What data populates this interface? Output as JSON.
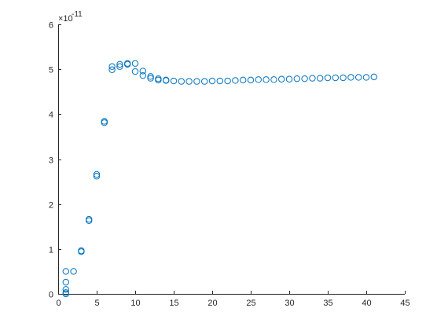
{
  "chart_data": {
    "type": "scatter",
    "title": "",
    "xlabel": "",
    "ylabel": "",
    "exponent_label": "×10",
    "exponent_value": "-11",
    "xlim": [
      0,
      45
    ],
    "ylim": [
      0,
      6
    ],
    "xticks": [
      0,
      5,
      10,
      15,
      20,
      25,
      30,
      35,
      40,
      45
    ],
    "yticks": [
      0,
      1,
      2,
      3,
      4,
      5,
      6
    ],
    "grid": false,
    "legend": "none",
    "marker_color": "#0072BD",
    "axis_color": "#262626",
    "series": [
      {
        "x": [
          1,
          1,
          1,
          1,
          1,
          2,
          3,
          3,
          4,
          4,
          5,
          5,
          6,
          6,
          7,
          7,
          8,
          8,
          9,
          9,
          10,
          10,
          11,
          11,
          12,
          12,
          13,
          13,
          14,
          14,
          15,
          16,
          17,
          18,
          19,
          20,
          21,
          22,
          23,
          24,
          25,
          26,
          27,
          28,
          29,
          30,
          31,
          32,
          33,
          34,
          35,
          36,
          37,
          38,
          39,
          40,
          41
        ],
        "y": [
          0.0,
          0.1,
          0.26,
          0.5,
          0.03,
          0.5,
          0.94,
          0.96,
          1.63,
          1.66,
          2.62,
          2.66,
          3.81,
          3.84,
          4.99,
          5.06,
          5.06,
          5.11,
          5.11,
          5.13,
          4.95,
          5.13,
          4.86,
          4.96,
          4.8,
          4.84,
          4.76,
          4.79,
          4.75,
          4.76,
          4.74,
          4.73,
          4.73,
          4.73,
          4.73,
          4.74,
          4.74,
          4.74,
          4.75,
          4.76,
          4.76,
          4.77,
          4.77,
          4.77,
          4.78,
          4.78,
          4.79,
          4.79,
          4.8,
          4.8,
          4.81,
          4.81,
          4.81,
          4.82,
          4.82,
          4.82,
          4.83
        ]
      }
    ]
  }
}
